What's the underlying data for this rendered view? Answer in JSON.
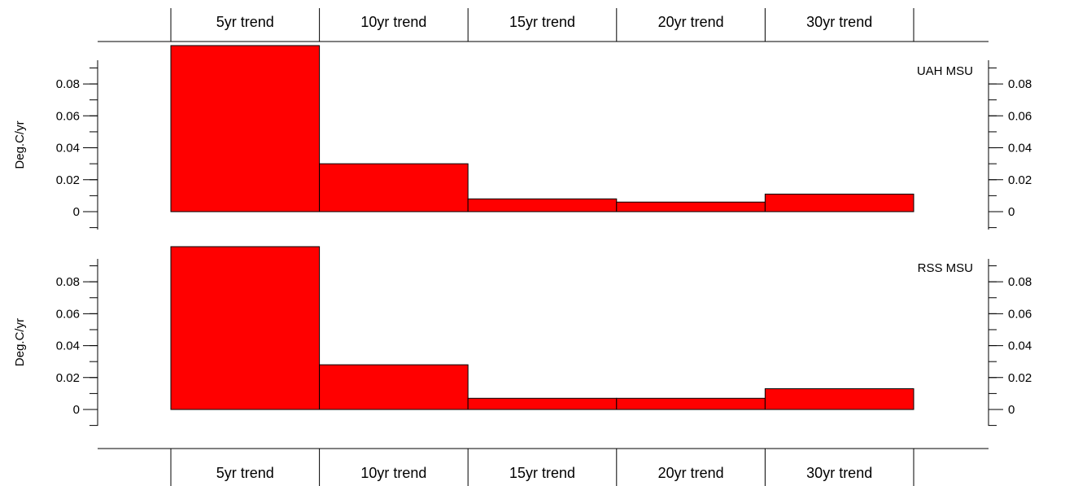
{
  "chart_data": {
    "type": "bar",
    "categories": [
      "5yr trend",
      "10yr trend",
      "15yr trend",
      "20yr trend",
      "30yr trend"
    ],
    "panels": [
      {
        "name": "UAH MSU",
        "ylabel": "Deg.C/yr",
        "ylim": [
          -0.012,
          0.1
        ],
        "yticks": [
          "0",
          "0.02",
          "0.04",
          "0.06",
          "0.08"
        ],
        "values": [
          0.104,
          0.03,
          0.008,
          0.006,
          0.011
        ]
      },
      {
        "name": "RSS MSU",
        "ylabel": "Deg.C/yr",
        "ylim": [
          -0.01,
          0.1
        ],
        "yticks": [
          "0",
          "0.02",
          "0.04",
          "0.06",
          "0.08"
        ],
        "values": [
          0.102,
          0.028,
          0.007,
          0.007,
          0.013
        ]
      }
    ],
    "bar_color": "#ff0000",
    "grid": false,
    "legend": "none"
  }
}
